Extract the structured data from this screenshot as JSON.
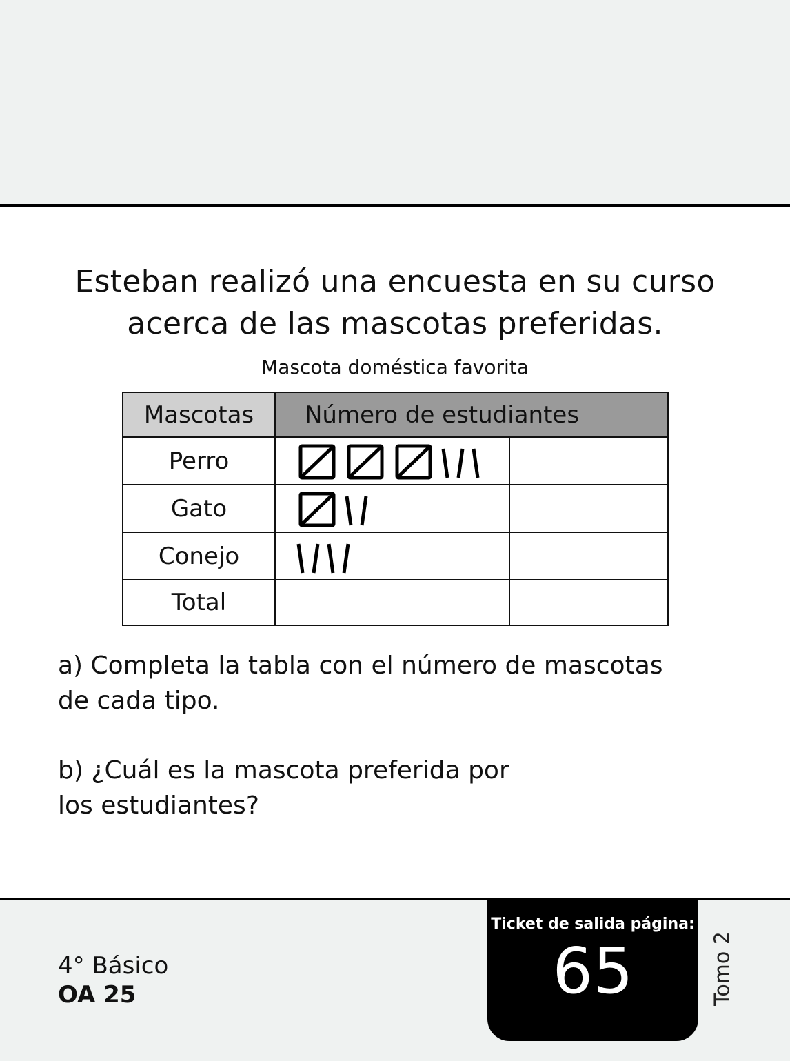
{
  "problem": {
    "line1": "Esteban realizó una encuesta en su curso",
    "line2": "acerca de las mascotas preferidas."
  },
  "table": {
    "caption": "Mascota doméstica favorita",
    "headers": [
      "Mascotas",
      "Número de estudiantes"
    ],
    "rows": [
      {
        "label": "Perro",
        "tally": 18,
        "answer": ""
      },
      {
        "label": "Gato",
        "tally": 7,
        "answer": ""
      },
      {
        "label": "Conejo",
        "tally": 4,
        "answer": ""
      },
      {
        "label": "Total",
        "tally": 0,
        "answer": ""
      }
    ]
  },
  "questions": {
    "a_line1": "a) Completa la tabla con el número de mascotas",
    "a_line2": "de cada tipo.",
    "b_line1": "b) ¿Cuál es la mascota preferida por",
    "b_line2": "los estudiantes?"
  },
  "footer": {
    "grade": "4° Básico",
    "oa": "OA 25",
    "ticket_label": "Ticket de salida página:",
    "ticket_page": "65",
    "tomo": "Tomo 2"
  }
}
